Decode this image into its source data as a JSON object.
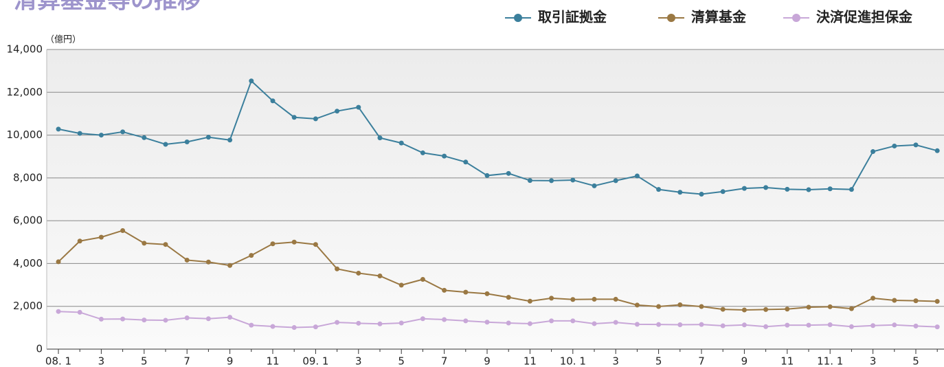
{
  "chart_data": {
    "type": "line",
    "title": "清算基金等の推移",
    "y_unit_label": "（億円）",
    "categories": [
      "08. 1",
      null,
      "3",
      null,
      "5",
      null,
      "7",
      null,
      "9",
      null,
      "11",
      null,
      "09. 1",
      null,
      "3",
      null,
      "5",
      null,
      "7",
      null,
      "9",
      null,
      "11",
      null,
      "10. 1",
      null,
      "3",
      null,
      "5",
      null,
      "7",
      null,
      "9",
      null,
      "11",
      null,
      "11. 1",
      null,
      "3",
      null,
      "5",
      null
    ],
    "series": [
      {
        "name": "取引証拠金",
        "color": "#3b7f9c",
        "values": [
          10280,
          10080,
          10000,
          10150,
          9880,
          9570,
          9680,
          9900,
          9770,
          12530,
          11600,
          10830,
          10760,
          11120,
          11300,
          9870,
          9630,
          9170,
          9020,
          8740,
          8110,
          8210,
          7880,
          7870,
          7900,
          7630,
          7870,
          8090,
          7460,
          7330,
          7240,
          7360,
          7510,
          7550,
          7470,
          7450,
          7490,
          7460,
          9230,
          9490,
          9540,
          9270
        ]
      },
      {
        "name": "清算基金",
        "color": "#9a7843",
        "values": [
          4080,
          5050,
          5230,
          5540,
          4950,
          4890,
          4160,
          4070,
          3910,
          4380,
          4920,
          5000,
          4890,
          3750,
          3550,
          3420,
          2990,
          3260,
          2750,
          2660,
          2590,
          2420,
          2240,
          2380,
          2320,
          2330,
          2330,
          2060,
          1990,
          2070,
          1990,
          1860,
          1830,
          1850,
          1870,
          1960,
          1980,
          1890,
          2380,
          2280,
          2260,
          2230
        ]
      },
      {
        "name": "決済促進担保金",
        "color": "#c8a7d8",
        "values": [
          1760,
          1720,
          1400,
          1410,
          1360,
          1350,
          1460,
          1420,
          1490,
          1120,
          1060,
          1010,
          1040,
          1250,
          1210,
          1180,
          1220,
          1420,
          1380,
          1320,
          1260,
          1220,
          1190,
          1320,
          1320,
          1190,
          1250,
          1160,
          1150,
          1140,
          1150,
          1090,
          1130,
          1050,
          1120,
          1120,
          1140,
          1050,
          1100,
          1130,
          1080,
          1040
        ]
      }
    ],
    "ylim": [
      0,
      14000
    ],
    "yticks": [
      0,
      {
        "value": 2000,
        "label": "2,000"
      },
      {
        "value": 4000,
        "label": "4,000"
      },
      {
        "value": 6000,
        "label": "6,000"
      },
      {
        "value": 8000,
        "label": "8,000"
      },
      {
        "value": 10000,
        "label": "10,000"
      },
      {
        "value": 12000,
        "label": "12,000"
      },
      {
        "value": 14000,
        "label": "14,000"
      }
    ],
    "grid": true,
    "legend": "top-right"
  }
}
